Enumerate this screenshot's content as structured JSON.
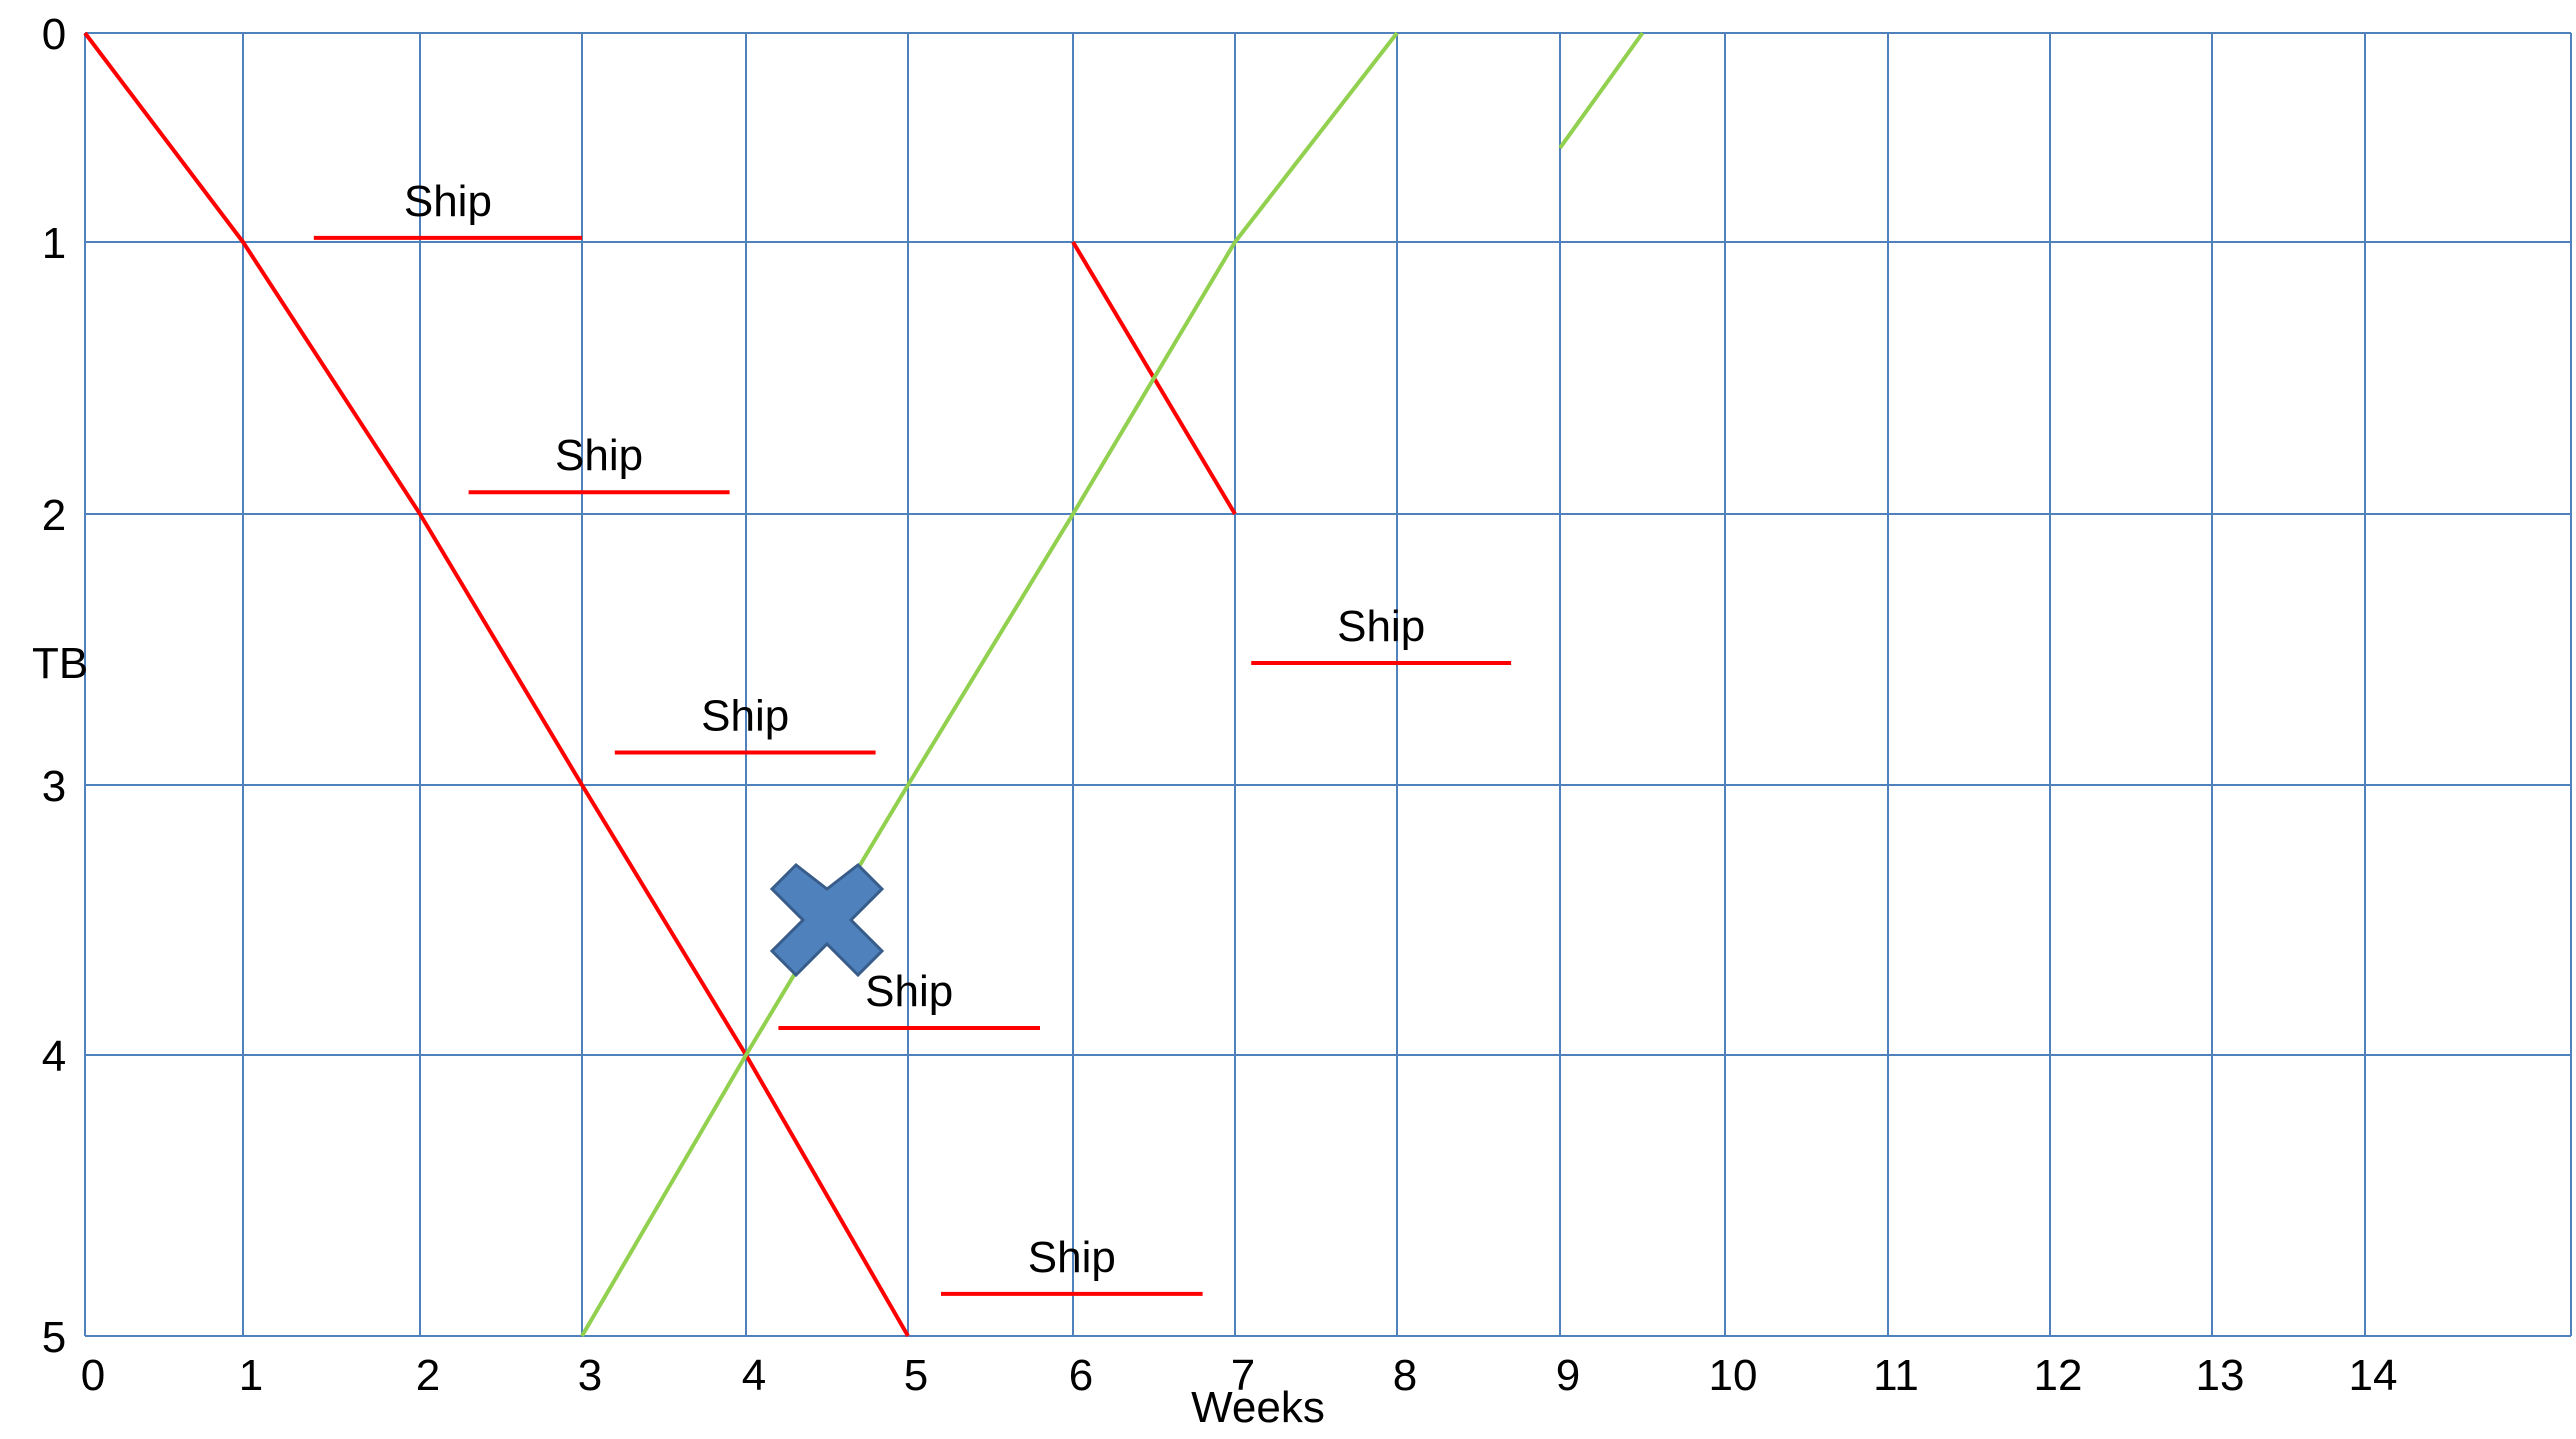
{
  "chart_data": {
    "type": "line",
    "title": "",
    "xlabel": "Weeks",
    "ylabel": "TB",
    "xlim": [
      0,
      15
    ],
    "ylim": [
      0,
      5
    ],
    "y_axis_inverted": true,
    "grid": true,
    "x_ticks": [
      "0",
      "1",
      "2",
      "3",
      "4",
      "5",
      "6",
      "7",
      "8",
      "9",
      "10",
      "11",
      "12",
      "13",
      "14"
    ],
    "y_ticks": [
      "0",
      "1",
      "2",
      "3",
      "4",
      "5"
    ],
    "colors": {
      "grid": "#4f81bd",
      "red_series": "#ff0000",
      "green_series": "#92d050",
      "cross_fill": "#4f81bd",
      "cross_stroke": "#385d8a"
    },
    "series": [
      {
        "color": "red",
        "points": [
          [
            0,
            0
          ],
          [
            1,
            1
          ],
          [
            2,
            2
          ],
          [
            3,
            3
          ],
          [
            4,
            4
          ],
          [
            5,
            5
          ]
        ]
      },
      {
        "color": "red",
        "points": [
          [
            6,
            1
          ],
          [
            7,
            2
          ]
        ]
      },
      {
        "color": "green",
        "points": [
          [
            3,
            5
          ],
          [
            4,
            4
          ],
          [
            5,
            3
          ]
        ]
      },
      {
        "color": "green",
        "points": [
          [
            5,
            3
          ],
          [
            6,
            2
          ],
          [
            7,
            1
          ]
        ]
      },
      {
        "color": "green",
        "points": [
          [
            7,
            1
          ],
          [
            8,
            0
          ]
        ]
      },
      {
        "color": "green",
        "points": [
          [
            9,
            0.55
          ],
          [
            9.5,
            0
          ]
        ]
      }
    ],
    "annotations": [
      {
        "text": "Ship",
        "x_start": 1.4,
        "x_end": 3.0,
        "y": 0.98
      },
      {
        "text": "Ship",
        "x_start": 2.3,
        "x_end": 3.9,
        "y": 1.92
      },
      {
        "text": "Ship",
        "x_start": 3.2,
        "x_end": 4.8,
        "y": 2.88
      },
      {
        "text": "Ship",
        "x_start": 4.2,
        "x_end": 5.8,
        "y": 3.9
      },
      {
        "text": "Ship",
        "x_start": 5.2,
        "x_end": 6.8,
        "y": 4.85
      },
      {
        "text": "Ship",
        "x_start": 7.1,
        "x_end": 8.7,
        "y": 2.55
      }
    ],
    "marker": {
      "shape": "cross",
      "x": 4.5,
      "y": 3.5
    }
  }
}
